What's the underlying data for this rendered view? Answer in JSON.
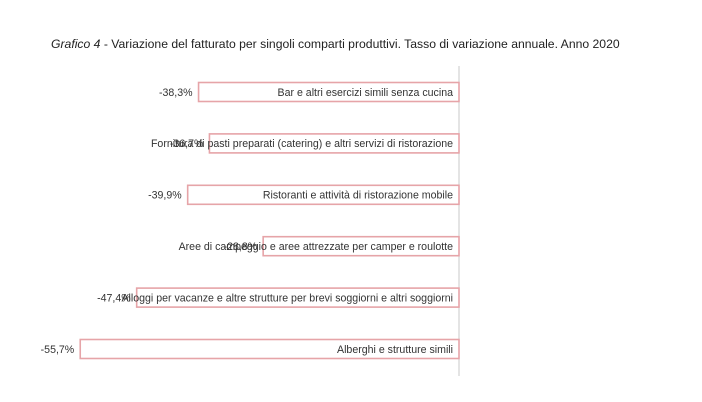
{
  "title": {
    "prefix": "Grafico 4",
    "separator": " - ",
    "text": "Variazione del fatturato per singoli comparti produttivi. Tasso di variazione annuale. Anno 2020"
  },
  "chart_data": {
    "type": "bar",
    "orientation": "horizontal",
    "title": "Grafico 4 - Variazione del fatturato per singoli comparti produttivi. Tasso di variazione annuale. Anno 2020",
    "categories": [
      "Bar e altri esercizi simili senza cucina",
      "Fornitura di pasti preparati (catering) e altri servizi di ristorazione",
      "Ristoranti e attività di ristorazione mobile",
      "Aree di campeggio e aree attrezzate per camper e roulotte",
      "Alloggi per vacanze e altre strutture per brevi soggiorni e altri soggiorni",
      "Alberghi e strutture simili"
    ],
    "values": [
      -38.3,
      -36.7,
      -39.9,
      -28.8,
      -47.4,
      -55.7
    ],
    "value_labels": [
      "-38,3%",
      "-36,7%",
      "-39,9%",
      "-28,8%",
      "-47,4%",
      "-55,7%"
    ],
    "unit": "%",
    "xlim": [
      -60,
      0
    ],
    "grid": false,
    "legend": "none",
    "colors": {
      "bar_stroke": "#e6a4a8",
      "bar_fill": "#ffffff",
      "axis": "#c8c8c8"
    }
  }
}
